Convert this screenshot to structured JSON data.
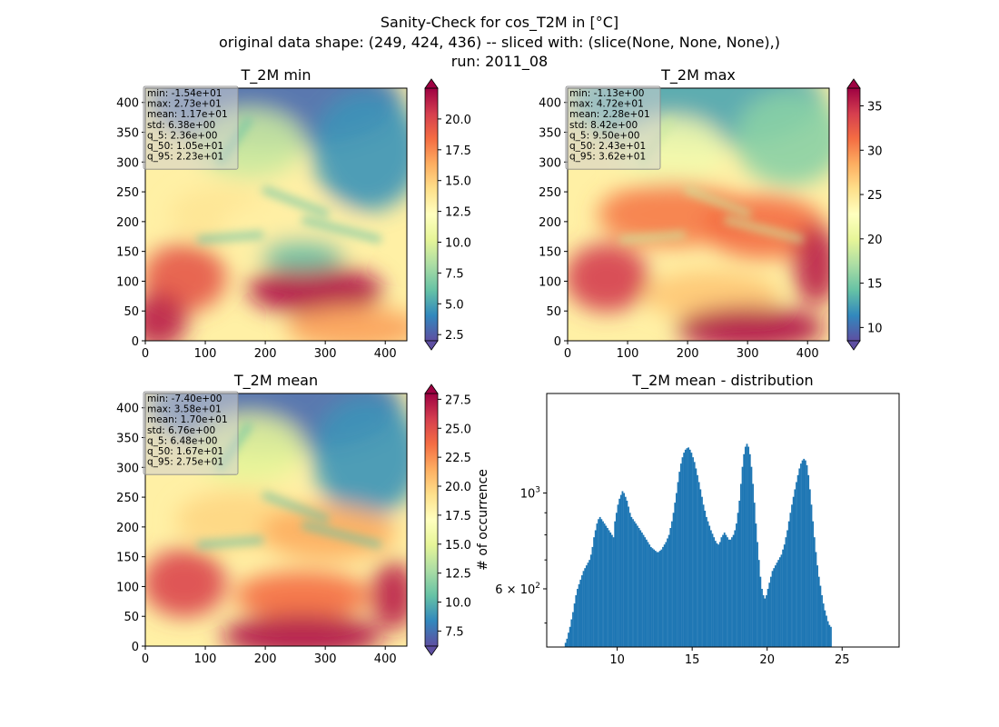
{
  "figure": {
    "title_lines": [
      "Sanity-Check for cos_T2M in [°C]",
      "original data shape: (249, 424, 436) -- sliced with: (slice(None, None, None),)",
      "run: 2011_08"
    ]
  },
  "colors": {
    "hist_bar": "#1f77b4",
    "colormap": [
      "#5e4fa2",
      "#3288bd",
      "#66c2a5",
      "#abdda4",
      "#e6f598",
      "#ffffbf",
      "#fee08b",
      "#fdae61",
      "#f46d43",
      "#d53e4f",
      "#9e0142"
    ]
  },
  "chart_data": [
    {
      "id": "min",
      "type": "heatmap",
      "title": "T_2M min",
      "colormap_name": "Spectral_r",
      "xlim": [
        0,
        436
      ],
      "ylim": [
        0,
        424
      ],
      "xticks": [
        "0",
        "100",
        "200",
        "300",
        "400"
      ],
      "yticks": [
        "0",
        "50",
        "100",
        "150",
        "200",
        "250",
        "300",
        "350",
        "400"
      ],
      "colorbar": {
        "range": [
          2.0,
          22.5
        ],
        "ticks": [
          "2.5",
          "5.0",
          "7.5",
          "10.0",
          "12.5",
          "15.0",
          "17.5",
          "20.0"
        ]
      },
      "stats": [
        "min: -1.54e+01",
        "max: 2.73e+01",
        "mean: 1.17e+01",
        "std: 6.38e+00",
        "q_5: 2.36e+00",
        "q_50: 1.05e+01",
        "q_95: 2.23e+01"
      ]
    },
    {
      "id": "max",
      "type": "heatmap",
      "title": "T_2M max",
      "colormap_name": "Spectral_r",
      "xlim": [
        0,
        436
      ],
      "ylim": [
        0,
        424
      ],
      "xticks": [
        "0",
        "100",
        "200",
        "300",
        "400"
      ],
      "yticks": [
        "0",
        "50",
        "100",
        "150",
        "200",
        "250",
        "300",
        "350",
        "400"
      ],
      "colorbar": {
        "range": [
          8.5,
          37.0
        ],
        "ticks": [
          "10",
          "15",
          "20",
          "25",
          "30",
          "35"
        ]
      },
      "stats": [
        "min: -1.13e+00",
        "max: 4.72e+01",
        "mean: 2.28e+01",
        "std: 8.42e+00",
        "q_5: 9.50e+00",
        "q_50: 2.43e+01",
        "q_95: 3.62e+01"
      ]
    },
    {
      "id": "mean",
      "type": "heatmap",
      "title": "T_2M mean",
      "colormap_name": "Spectral_r",
      "xlim": [
        0,
        436
      ],
      "ylim": [
        0,
        424
      ],
      "xticks": [
        "0",
        "100",
        "200",
        "300",
        "400"
      ],
      "yticks": [
        "0",
        "50",
        "100",
        "150",
        "200",
        "250",
        "300",
        "350",
        "400"
      ],
      "colorbar": {
        "range": [
          6.2,
          28.0
        ],
        "ticks": [
          "7.5",
          "10.0",
          "12.5",
          "15.0",
          "17.5",
          "20.0",
          "22.5",
          "25.0",
          "27.5"
        ]
      },
      "stats": [
        "min: -7.40e+00",
        "max: 3.58e+01",
        "mean: 1.70e+01",
        "std: 6.76e+00",
        "q_5: 6.48e+00",
        "q_50: 1.67e+01",
        "q_95: 2.75e+01"
      ]
    },
    {
      "id": "dist",
      "type": "bar",
      "title": "T_2M mean - distribution",
      "ylabel": "# of occurrence",
      "yscale": "log",
      "xlim": [
        5.3,
        28.8
      ],
      "ylim": [
        440,
        1700
      ],
      "xticks": [
        10,
        15,
        20,
        25
      ],
      "yticks": [
        {
          "value": 1000,
          "base": "10",
          "exp": "3"
        },
        {
          "value": 600,
          "base": "6 × 10",
          "exp": "2"
        }
      ],
      "bin_start": 6.5,
      "bin_width": 0.1,
      "counts": [
        450,
        460,
        475,
        490,
        510,
        530,
        555,
        580,
        600,
        615,
        630,
        645,
        660,
        670,
        680,
        690,
        700,
        720,
        750,
        790,
        820,
        850,
        870,
        880,
        870,
        860,
        850,
        840,
        830,
        820,
        810,
        800,
        790,
        860,
        900,
        940,
        970,
        990,
        1010,
        1000,
        980,
        960,
        930,
        900,
        880,
        870,
        860,
        850,
        840,
        830,
        820,
        810,
        800,
        790,
        780,
        770,
        760,
        750,
        745,
        740,
        735,
        730,
        730,
        735,
        740,
        750,
        760,
        770,
        785,
        800,
        830,
        860,
        900,
        950,
        1000,
        1060,
        1120,
        1170,
        1210,
        1240,
        1260,
        1270,
        1275,
        1260,
        1240,
        1210,
        1180,
        1140,
        1100,
        1060,
        1020,
        980,
        940,
        910,
        880,
        860,
        840,
        820,
        805,
        790,
        775,
        765,
        760,
        770,
        790,
        800,
        810,
        800,
        790,
        780,
        780,
        790,
        800,
        820,
        850,
        900,
        960,
        1050,
        1150,
        1230,
        1280,
        1300,
        1280,
        1230,
        1150,
        1050,
        950,
        850,
        770,
        700,
        640,
        600,
        580,
        570,
        580,
        600,
        620,
        640,
        660,
        670,
        680,
        690,
        700,
        710,
        720,
        740,
        760,
        790,
        820,
        860,
        900,
        940,
        980,
        1020,
        1060,
        1100,
        1140,
        1170,
        1190,
        1200,
        1190,
        1160,
        1100,
        1020,
        940,
        860,
        790,
        730,
        680,
        640,
        610,
        580,
        555,
        535,
        520,
        505,
        495,
        490
      ]
    }
  ]
}
